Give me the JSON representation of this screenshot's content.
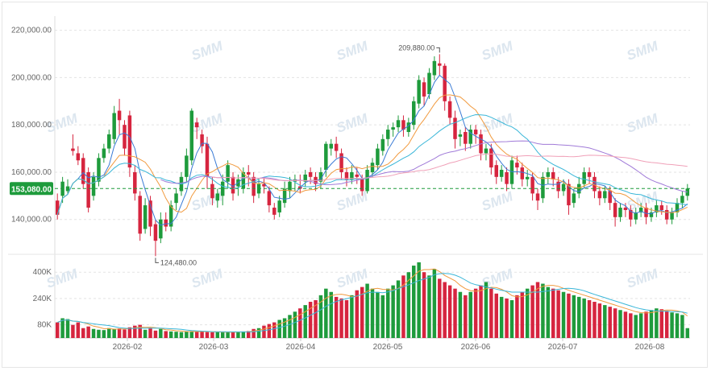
{
  "chart_data": [
    {
      "type": "candlestick",
      "title": "",
      "x_ticks": [
        "2026-02",
        "2026-03",
        "2026-04",
        "2026-05",
        "2026-06",
        "2026-07",
        "2026-08"
      ],
      "y_ticks": [
        "140,000.00",
        "160,000.00",
        "180,000.00",
        "200,000.00",
        "220,000.00"
      ],
      "ylim": [
        128000,
        226000
      ],
      "last_price_label": "153,080.00",
      "last_price": 153080,
      "max_annotation": "209,880.00",
      "max_value": 209880,
      "min_annotation": "124,480.00",
      "min_value": 124480,
      "colors": {
        "up": "#1e9b3c",
        "down": "#d6253f",
        "ma_short": "#3a7bd5",
        "ma_mid": "#f19a3e",
        "ma_long": "#39b6d8",
        "ma_longer": "#a07ad8",
        "ma_longest": "#f0a0b8",
        "last_price_bg": "#1e9b3c"
      },
      "grid": true,
      "candles": [
        [
          148000,
          142000,
          151000,
          140000
        ],
        [
          150000,
          156000,
          158000,
          147000
        ],
        [
          152000,
          154000,
          157000,
          151000
        ],
        [
          170000,
          169000,
          176000,
          167000
        ],
        [
          168000,
          165000,
          171000
        ],
        [
          166000,
          155000,
          168000
        ],
        [
          160000,
          145000,
          162000,
          143000
        ],
        [
          150000,
          158000,
          160000,
          148000
        ],
        [
          156000,
          166000,
          168000,
          154000
        ],
        [
          166000,
          170000,
          172000,
          164000
        ],
        [
          170000,
          176000,
          178000,
          168000
        ],
        [
          174000,
          185000,
          188000,
          172000
        ],
        [
          186000,
          182000,
          191000,
          176000
        ],
        [
          180000,
          170000,
          182000,
          167000
        ],
        [
          184000,
          162000,
          186000,
          158000
        ],
        [
          160000,
          151000,
          163000,
          148000
        ],
        [
          150000,
          134000,
          152000,
          131000
        ],
        [
          136000,
          146000,
          149000,
          134000
        ],
        [
          148000,
          137000,
          150000,
          133000
        ],
        [
          138000,
          131000,
          140000,
          124480
        ],
        [
          132000,
          140000,
          143000,
          130000
        ],
        [
          140000,
          137000,
          143000,
          135000
        ],
        [
          137000,
          146000,
          148000,
          135000
        ],
        [
          147000,
          151000,
          153000,
          144000
        ],
        [
          152000,
          158000,
          160000,
          150000
        ],
        [
          158000,
          167000,
          170000,
          156000
        ],
        [
          165000,
          186000,
          187000,
          163000
        ],
        [
          181000,
          179000,
          183000,
          174000
        ],
        [
          176000,
          171000,
          178000,
          168000
        ],
        [
          172000,
          158000,
          175000,
          153000
        ],
        [
          155000,
          149000,
          158000,
          146000
        ],
        [
          148000,
          151000,
          153000,
          145000
        ],
        [
          150000,
          156000,
          159000,
          146000
        ],
        [
          156000,
          163000,
          165000,
          153000
        ],
        [
          158000,
          151000,
          160000,
          148000
        ],
        [
          154000,
          157000,
          159000,
          150000
        ],
        [
          153000,
          160000,
          162000,
          151000
        ],
        [
          160000,
          159000,
          163000,
          154000
        ],
        [
          158000,
          150000,
          160000,
          147000
        ],
        [
          151000,
          155000,
          157000,
          149000
        ],
        [
          155000,
          154000,
          158000,
          151000
        ],
        [
          152000,
          146000,
          154000,
          143000
        ],
        [
          145000,
          142000,
          147000,
          140000
        ],
        [
          143000,
          148000,
          150000,
          141000
        ],
        [
          147000,
          153000,
          156000,
          145000
        ],
        [
          152000,
          156000,
          158000,
          149000
        ],
        [
          156000,
          157000,
          159000,
          152000
        ],
        [
          154000,
          153000,
          159000,
          151000
        ],
        [
          156000,
          159000,
          161000,
          154000
        ],
        [
          160000,
          158000,
          162000,
          155000
        ],
        [
          158000,
          155000,
          160000,
          152000
        ],
        [
          156000,
          160000,
          162000,
          153000
        ],
        [
          161000,
          172000,
          173000,
          158000
        ],
        [
          170000,
          172000,
          174000,
          167000
        ],
        [
          172000,
          169000,
          175000,
          166000
        ],
        [
          168000,
          160000,
          170000,
          157000
        ],
        [
          160000,
          157000,
          162000,
          154000
        ],
        [
          157000,
          160000,
          163000,
          155000
        ],
        [
          159000,
          158000,
          162000,
          155000
        ],
        [
          157000,
          152000,
          159000,
          150000
        ],
        [
          152000,
          161000,
          163000,
          151000
        ],
        [
          160000,
          164000,
          166000,
          158000
        ],
        [
          163000,
          170000,
          172000,
          161000
        ],
        [
          169000,
          174000,
          176000,
          167000
        ],
        [
          174000,
          178000,
          180000,
          171000
        ],
        [
          178000,
          179000,
          181000,
          175000
        ],
        [
          179000,
          182000,
          184000,
          177000
        ],
        [
          182000,
          178000,
          184000,
          175000
        ],
        [
          177000,
          181000,
          183000,
          175000
        ],
        [
          180000,
          190000,
          192000,
          178000
        ],
        [
          189000,
          199000,
          201000,
          187000
        ],
        [
          198000,
          192000,
          200000,
          188000
        ],
        [
          193000,
          202000,
          204000,
          191000
        ],
        [
          201000,
          207000,
          209000,
          199000
        ],
        [
          206000,
          205000,
          209880,
          201000
        ],
        [
          205000,
          190000,
          206000,
          186000
        ],
        [
          190000,
          183000,
          192000,
          180000
        ],
        [
          183000,
          174000,
          186000,
          170000
        ],
        [
          175000,
          176000,
          178000,
          171000
        ],
        [
          177000,
          172000,
          179000,
          169000
        ],
        [
          172000,
          178000,
          180000,
          170000
        ],
        [
          178000,
          176000,
          180000,
          172000
        ],
        [
          176000,
          168000,
          178000,
          165000
        ],
        [
          168000,
          170000,
          172000,
          165000
        ],
        [
          170000,
          162000,
          172000,
          159000
        ],
        [
          163000,
          158000,
          165000,
          155000
        ],
        [
          158000,
          161000,
          163000,
          156000
        ],
        [
          160000,
          155000,
          162000,
          152000
        ],
        [
          155000,
          165000,
          167000,
          153000
        ],
        [
          164000,
          162000,
          167000,
          159000
        ],
        [
          162000,
          157000,
          164000,
          154000
        ],
        [
          157000,
          158000,
          161000,
          154000
        ],
        [
          158000,
          151000,
          160000,
          148000
        ],
        [
          151000,
          148000,
          153000,
          144000
        ],
        [
          149000,
          158000,
          160000,
          147000
        ],
        [
          158000,
          160000,
          162000,
          155000
        ],
        [
          160000,
          157000,
          162000,
          154000
        ],
        [
          156000,
          152000,
          158000,
          149000
        ],
        [
          152000,
          155000,
          157000,
          150000
        ],
        [
          155000,
          146000,
          157000,
          142000
        ],
        [
          147000,
          151000,
          153000,
          145000
        ],
        [
          151000,
          155000,
          158000,
          149000
        ],
        [
          155000,
          160000,
          162000,
          153000
        ],
        [
          160000,
          158000,
          162000,
          155000
        ],
        [
          158000,
          152000,
          160000,
          149000
        ],
        [
          152000,
          149000,
          154000,
          146000
        ],
        [
          149000,
          152000,
          154000,
          147000
        ],
        [
          152000,
          147000,
          154000,
          144000
        ],
        [
          147000,
          141000,
          149000,
          137000
        ],
        [
          141000,
          145000,
          147000,
          139000
        ],
        [
          145000,
          144000,
          147000,
          141000
        ],
        [
          144000,
          140000,
          146000,
          137000
        ],
        [
          140000,
          143000,
          145000,
          138000
        ],
        [
          143000,
          145000,
          147000,
          141000
        ],
        [
          145000,
          141000,
          147000,
          138000
        ],
        [
          141000,
          143000,
          145000,
          139000
        ],
        [
          143000,
          146000,
          148000,
          141000
        ],
        [
          146000,
          144000,
          148000,
          142000
        ],
        [
          144000,
          140000,
          146000,
          138000
        ],
        [
          140000,
          143000,
          145000,
          138000
        ],
        [
          143000,
          147000,
          149000,
          141000
        ],
        [
          147000,
          150000,
          152000,
          145000
        ],
        [
          150000,
          153080,
          155000,
          148000
        ]
      ],
      "x_range_days": [
        0,
        214
      ]
    },
    {
      "type": "bar",
      "title": "",
      "y_ticks": [
        "80K",
        "240K",
        "400K"
      ],
      "ylim": [
        0,
        450000
      ],
      "values": [
        95000,
        120000,
        115000,
        80000,
        95000,
        60000,
        70000,
        55000,
        50000,
        48000,
        60000,
        55000,
        58000,
        52000,
        65000,
        75000,
        80000,
        50000,
        60000,
        45000,
        55000,
        42000,
        40000,
        38000,
        36000,
        40000,
        42000,
        38000,
        40000,
        36000,
        35000,
        37000,
        34000,
        36000,
        35000,
        38000,
        40000,
        42000,
        55000,
        60000,
        75000,
        85000,
        95000,
        110000,
        120000,
        140000,
        160000,
        180000,
        200000,
        220000,
        230000,
        260000,
        300000,
        280000,
        250000,
        240000,
        230000,
        260000,
        290000,
        310000,
        330000,
        300000,
        280000,
        260000,
        300000,
        320000,
        350000,
        380000,
        400000,
        440000,
        460000,
        400000,
        380000,
        420000,
        360000,
        340000,
        320000,
        300000,
        280000,
        260000,
        280000,
        300000,
        320000,
        340000,
        300000,
        270000,
        250000,
        240000,
        230000,
        260000,
        280000,
        300000,
        320000,
        340000,
        330000,
        310000,
        300000,
        290000,
        280000,
        270000,
        260000,
        250000,
        240000,
        230000,
        220000,
        210000,
        200000,
        190000,
        180000,
        170000,
        160000,
        150000,
        140000,
        150000,
        160000,
        170000,
        180000,
        175000,
        165000,
        155000,
        150000,
        140000,
        60000
      ]
    }
  ]
}
